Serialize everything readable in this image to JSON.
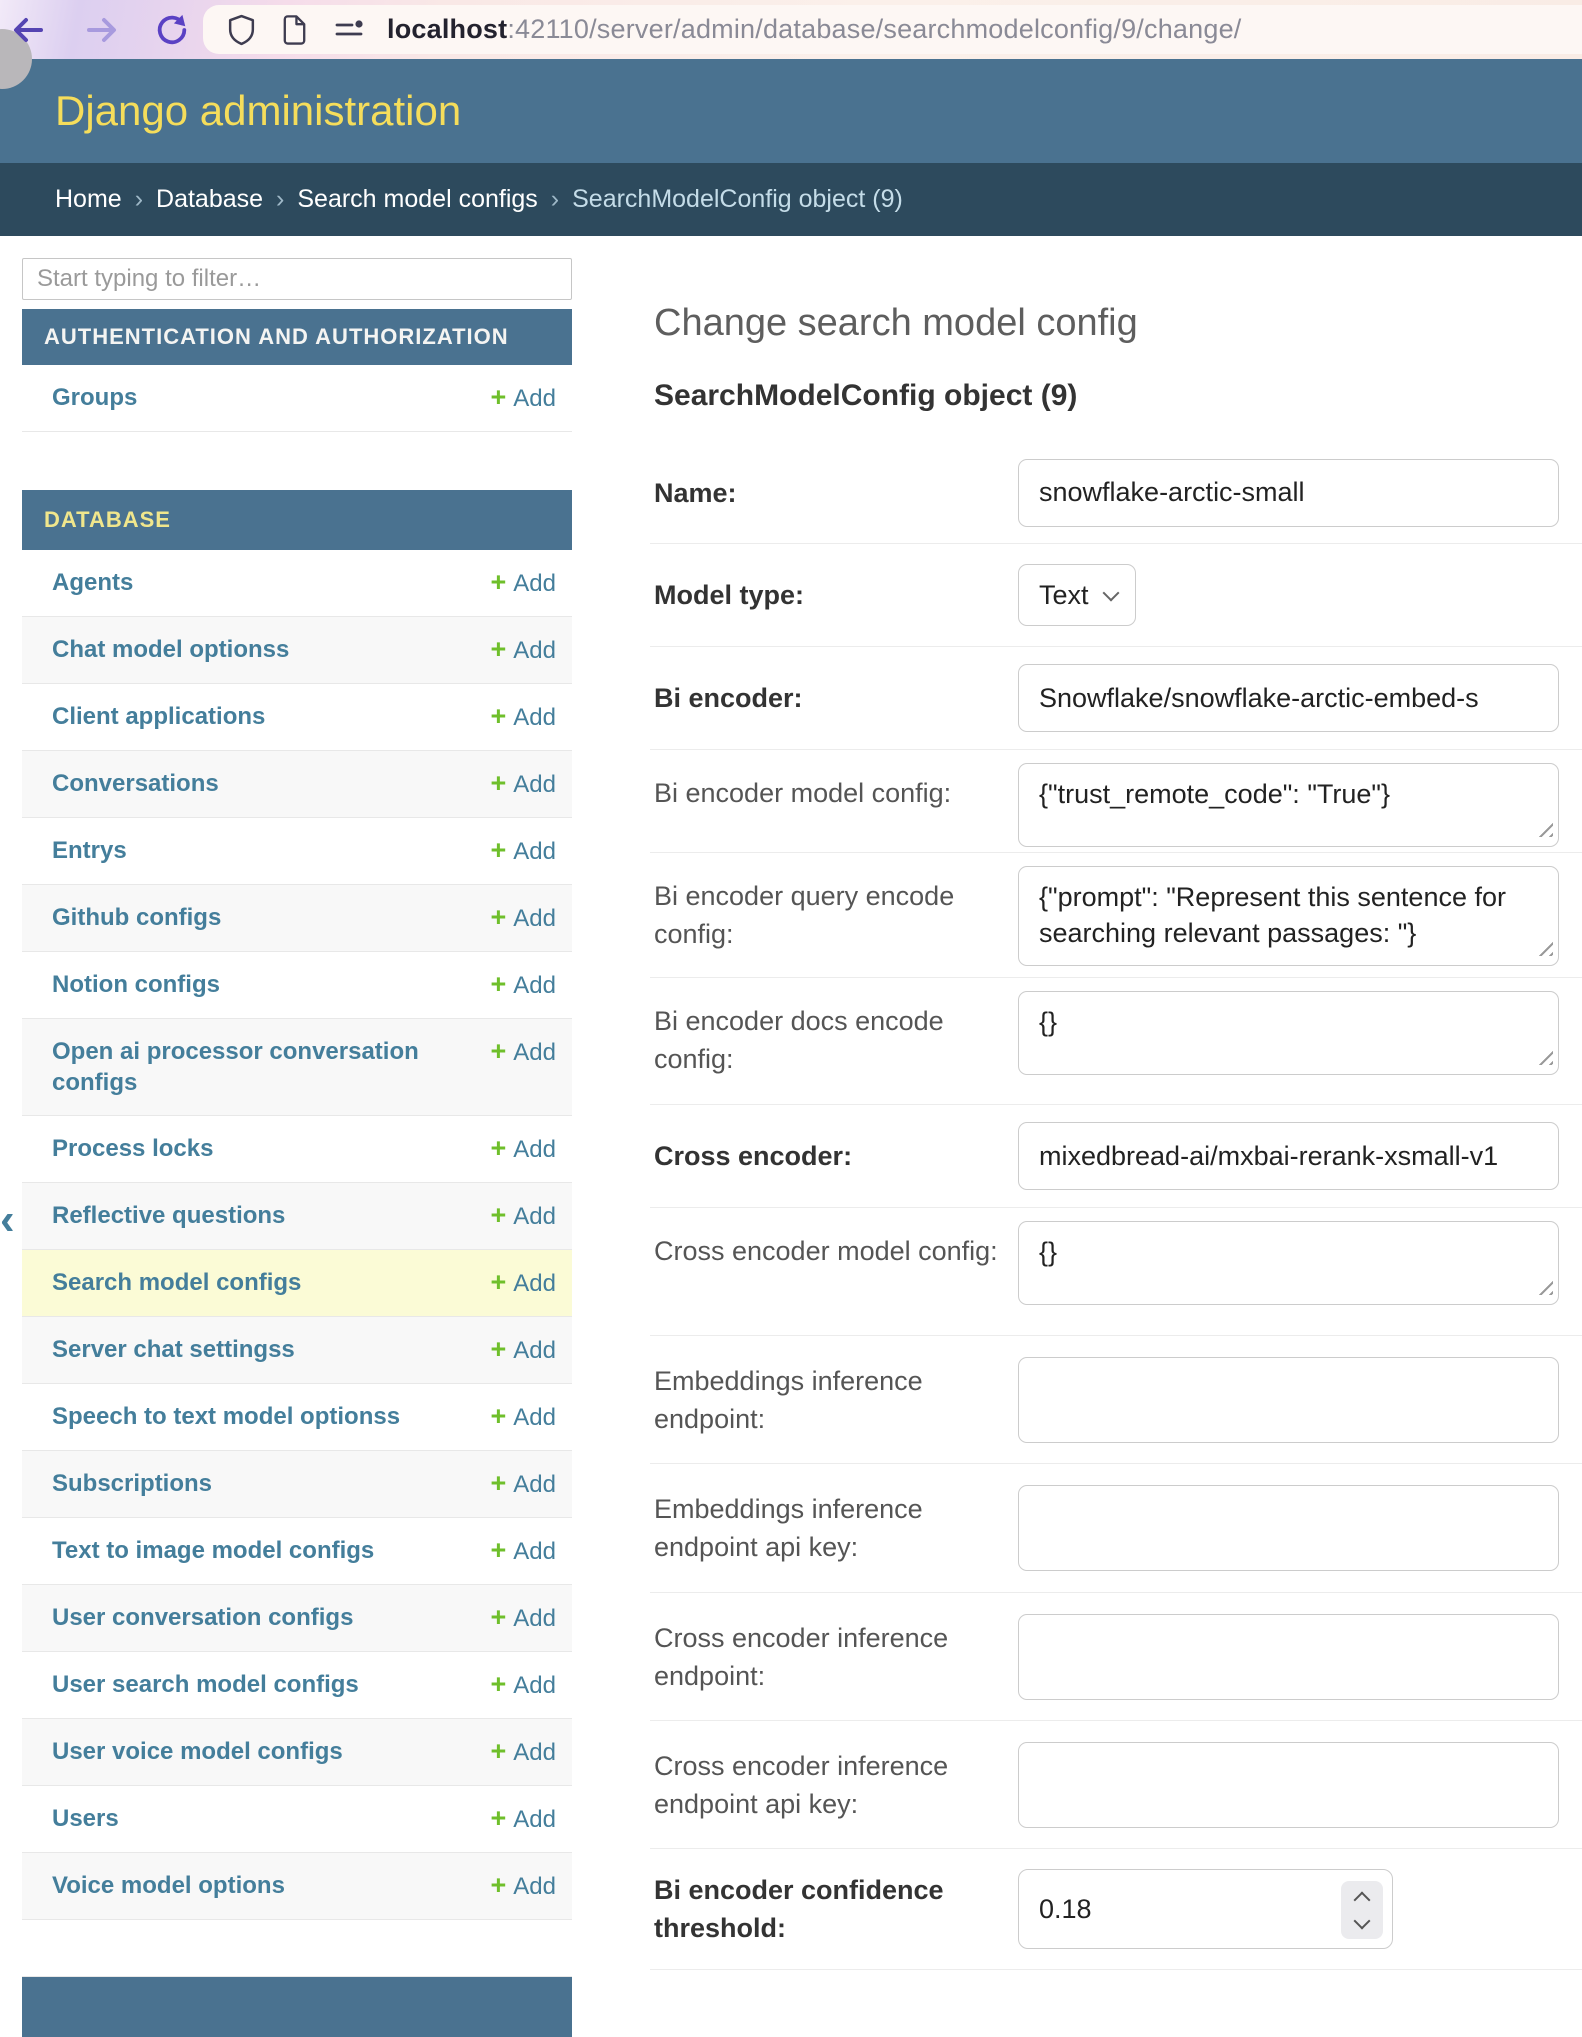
{
  "browser": {
    "url_host": "localhost",
    "url_rest": ":42110/server/admin/database/searchmodelconfig/9/change/",
    "icons": {
      "back": "back-arrow-icon",
      "forward": "forward-arrow-icon",
      "refresh": "refresh-icon",
      "shield": "shield-icon",
      "page": "page-icon",
      "permissions": "permissions-toggle-icon"
    }
  },
  "header": {
    "title": "Django administration"
  },
  "breadcrumbs": {
    "separator": "›",
    "items": [
      {
        "label": "Home",
        "link": true
      },
      {
        "label": "Database",
        "link": true
      },
      {
        "label": "Search model configs",
        "link": true
      },
      {
        "label": "SearchModelConfig object (9)",
        "link": false
      }
    ]
  },
  "sidebar": {
    "filter_placeholder": "Start typing to filter…",
    "toggle_glyph": "‹",
    "add_label": "Add",
    "add_plus": "+",
    "items": [
      {
        "type": "header",
        "label": "AUTHENTICATION AND AUTHORIZATION",
        "style": "white"
      },
      {
        "type": "row",
        "label": "Groups"
      },
      {
        "type": "gap"
      },
      {
        "type": "header",
        "label": "DATABASE",
        "style": "khaki"
      },
      {
        "type": "row",
        "label": "Agents"
      },
      {
        "type": "row",
        "label": "Chat model optionss"
      },
      {
        "type": "row",
        "label": "Client applications"
      },
      {
        "type": "row",
        "label": "Conversations"
      },
      {
        "type": "row",
        "label": "Entrys"
      },
      {
        "type": "row",
        "label": "Github configs"
      },
      {
        "type": "row",
        "label": "Notion configs"
      },
      {
        "type": "row",
        "label": "Open ai processor conversation configs"
      },
      {
        "type": "row",
        "label": "Process locks"
      },
      {
        "type": "row",
        "label": "Reflective questions"
      },
      {
        "type": "row",
        "label": "Search model configs",
        "highlight": true
      },
      {
        "type": "row",
        "label": "Server chat settingss"
      },
      {
        "type": "row",
        "label": "Speech to text model optionss"
      },
      {
        "type": "row",
        "label": "Subscriptions"
      },
      {
        "type": "row",
        "label": "Text to image model configs"
      },
      {
        "type": "row",
        "label": "User conversation configs"
      },
      {
        "type": "row",
        "label": "User search model configs"
      },
      {
        "type": "row",
        "label": "User voice model configs"
      },
      {
        "type": "row",
        "label": "Users"
      },
      {
        "type": "row",
        "label": "Voice model options"
      },
      {
        "type": "gap-short"
      },
      {
        "type": "footerbar"
      }
    ]
  },
  "main": {
    "page_title": "Change search model config",
    "object_title": "SearchModelConfig object (9)",
    "fields": [
      {
        "label": "Name:",
        "required": true,
        "control": "text",
        "value": "snowflake-arctic-small"
      },
      {
        "label": "Model type:",
        "required": true,
        "control": "select",
        "value": "Text"
      },
      {
        "label": "Bi encoder:",
        "required": true,
        "control": "text",
        "value": "Snowflake/snowflake-arctic-embed-s"
      },
      {
        "label": "Bi encoder model config:",
        "required": false,
        "control": "textarea",
        "size": "sm",
        "value": "{\"trust_remote_code\": \"True\"}"
      },
      {
        "label": "Bi encoder query encode config:",
        "required": false,
        "control": "textarea",
        "size": "md",
        "value": "{\"prompt\": \"Represent this sentence for searching relevant passages: \"}"
      },
      {
        "label": "Bi encoder docs encode config:",
        "required": false,
        "control": "textarea",
        "size": "sm",
        "value": "{}"
      },
      {
        "label": "Cross encoder:",
        "required": true,
        "control": "text",
        "value": "mixedbread-ai/mxbai-rerank-xsmall-v1"
      },
      {
        "label": "Cross encoder model config:",
        "required": false,
        "control": "textarea",
        "size": "sm",
        "value": "{}"
      },
      {
        "label": "Embeddings inference endpoint:",
        "required": false,
        "control": "text-empty",
        "value": ""
      },
      {
        "label": "Embeddings inference endpoint api key:",
        "required": false,
        "control": "text-empty",
        "value": ""
      },
      {
        "label": "Cross encoder inference endpoint:",
        "required": false,
        "control": "text-empty",
        "value": ""
      },
      {
        "label": "Cross encoder inference endpoint api key:",
        "required": false,
        "control": "text-empty",
        "value": ""
      },
      {
        "label": "Bi encoder confidence threshold:",
        "required": true,
        "control": "number",
        "value": "0.18"
      }
    ]
  }
}
